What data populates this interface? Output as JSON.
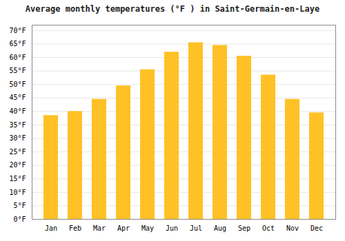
{
  "chart_data": {
    "type": "bar",
    "title": "Average monthly temperatures (°F ) in Saint-Germain-en-Laye",
    "categories": [
      "Jan",
      "Feb",
      "Mar",
      "Apr",
      "May",
      "Jun",
      "Jul",
      "Aug",
      "Sep",
      "Oct",
      "Nov",
      "Dec"
    ],
    "values": [
      38.5,
      40.0,
      44.5,
      49.5,
      55.5,
      62.0,
      65.5,
      64.5,
      60.5,
      53.5,
      44.5,
      39.5
    ],
    "color": "#FFC125",
    "ylim": [
      0,
      72
    ],
    "yticks": [
      {
        "value": 0,
        "label": "0°F"
      },
      {
        "value": 5,
        "label": "5°F"
      },
      {
        "value": 10,
        "label": "10°F"
      },
      {
        "value": 15,
        "label": "15°F"
      },
      {
        "value": 20,
        "label": "20°F"
      },
      {
        "value": 25,
        "label": "25°F"
      },
      {
        "value": 30,
        "label": "30°F"
      },
      {
        "value": 35,
        "label": "35°F"
      },
      {
        "value": 40,
        "label": "40°F"
      },
      {
        "value": 45,
        "label": "45°F"
      },
      {
        "value": 50,
        "label": "50°F"
      },
      {
        "value": 55,
        "label": "55°F"
      },
      {
        "value": 60,
        "label": "60°F"
      },
      {
        "value": 65,
        "label": "65°F"
      },
      {
        "value": 70,
        "label": "70°F"
      }
    ],
    "grid": true
  }
}
